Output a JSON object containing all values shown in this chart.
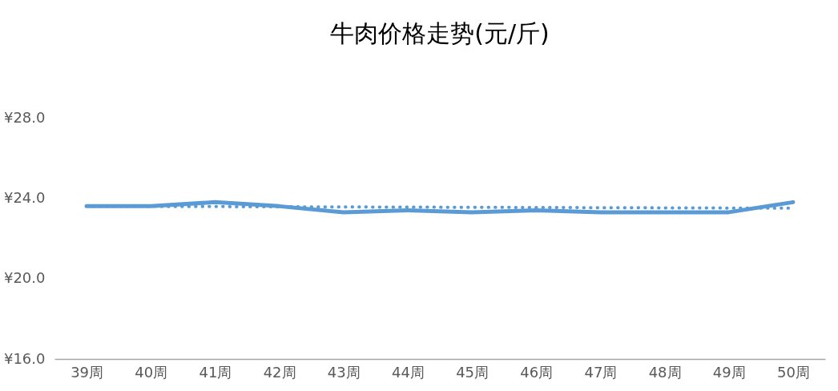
{
  "chart_data": {
    "type": "line",
    "title": "牛肉价格走势(元/斤)",
    "categories": [
      "39周",
      "40周",
      "41周",
      "42周",
      "43周",
      "44周",
      "45周",
      "46周",
      "47周",
      "48周",
      "49周",
      "50周"
    ],
    "series": [
      {
        "color": "#5b9bd5",
        "values": [
          23.6,
          23.6,
          23.8,
          23.6,
          23.3,
          23.4,
          23.3,
          23.4,
          23.3,
          23.3,
          23.3,
          23.8
        ]
      },
      {
        "type": "line",
        "color": "#5b9bd5",
        "line_style": "dotted",
        "x": [
          "39周",
          "50周"
        ],
        "values": [
          23.6,
          23.5
        ]
      }
    ],
    "ylim": [
      16,
      28
    ],
    "yticks": [
      {
        "value": 16,
        "label": "¥16.0"
      },
      {
        "value": 20,
        "label": "¥20.0"
      },
      {
        "value": 24,
        "label": "¥24.0"
      },
      {
        "value": 28,
        "label": "¥28.0"
      }
    ],
    "grid": false,
    "marker": "none",
    "line_style": "solid"
  }
}
